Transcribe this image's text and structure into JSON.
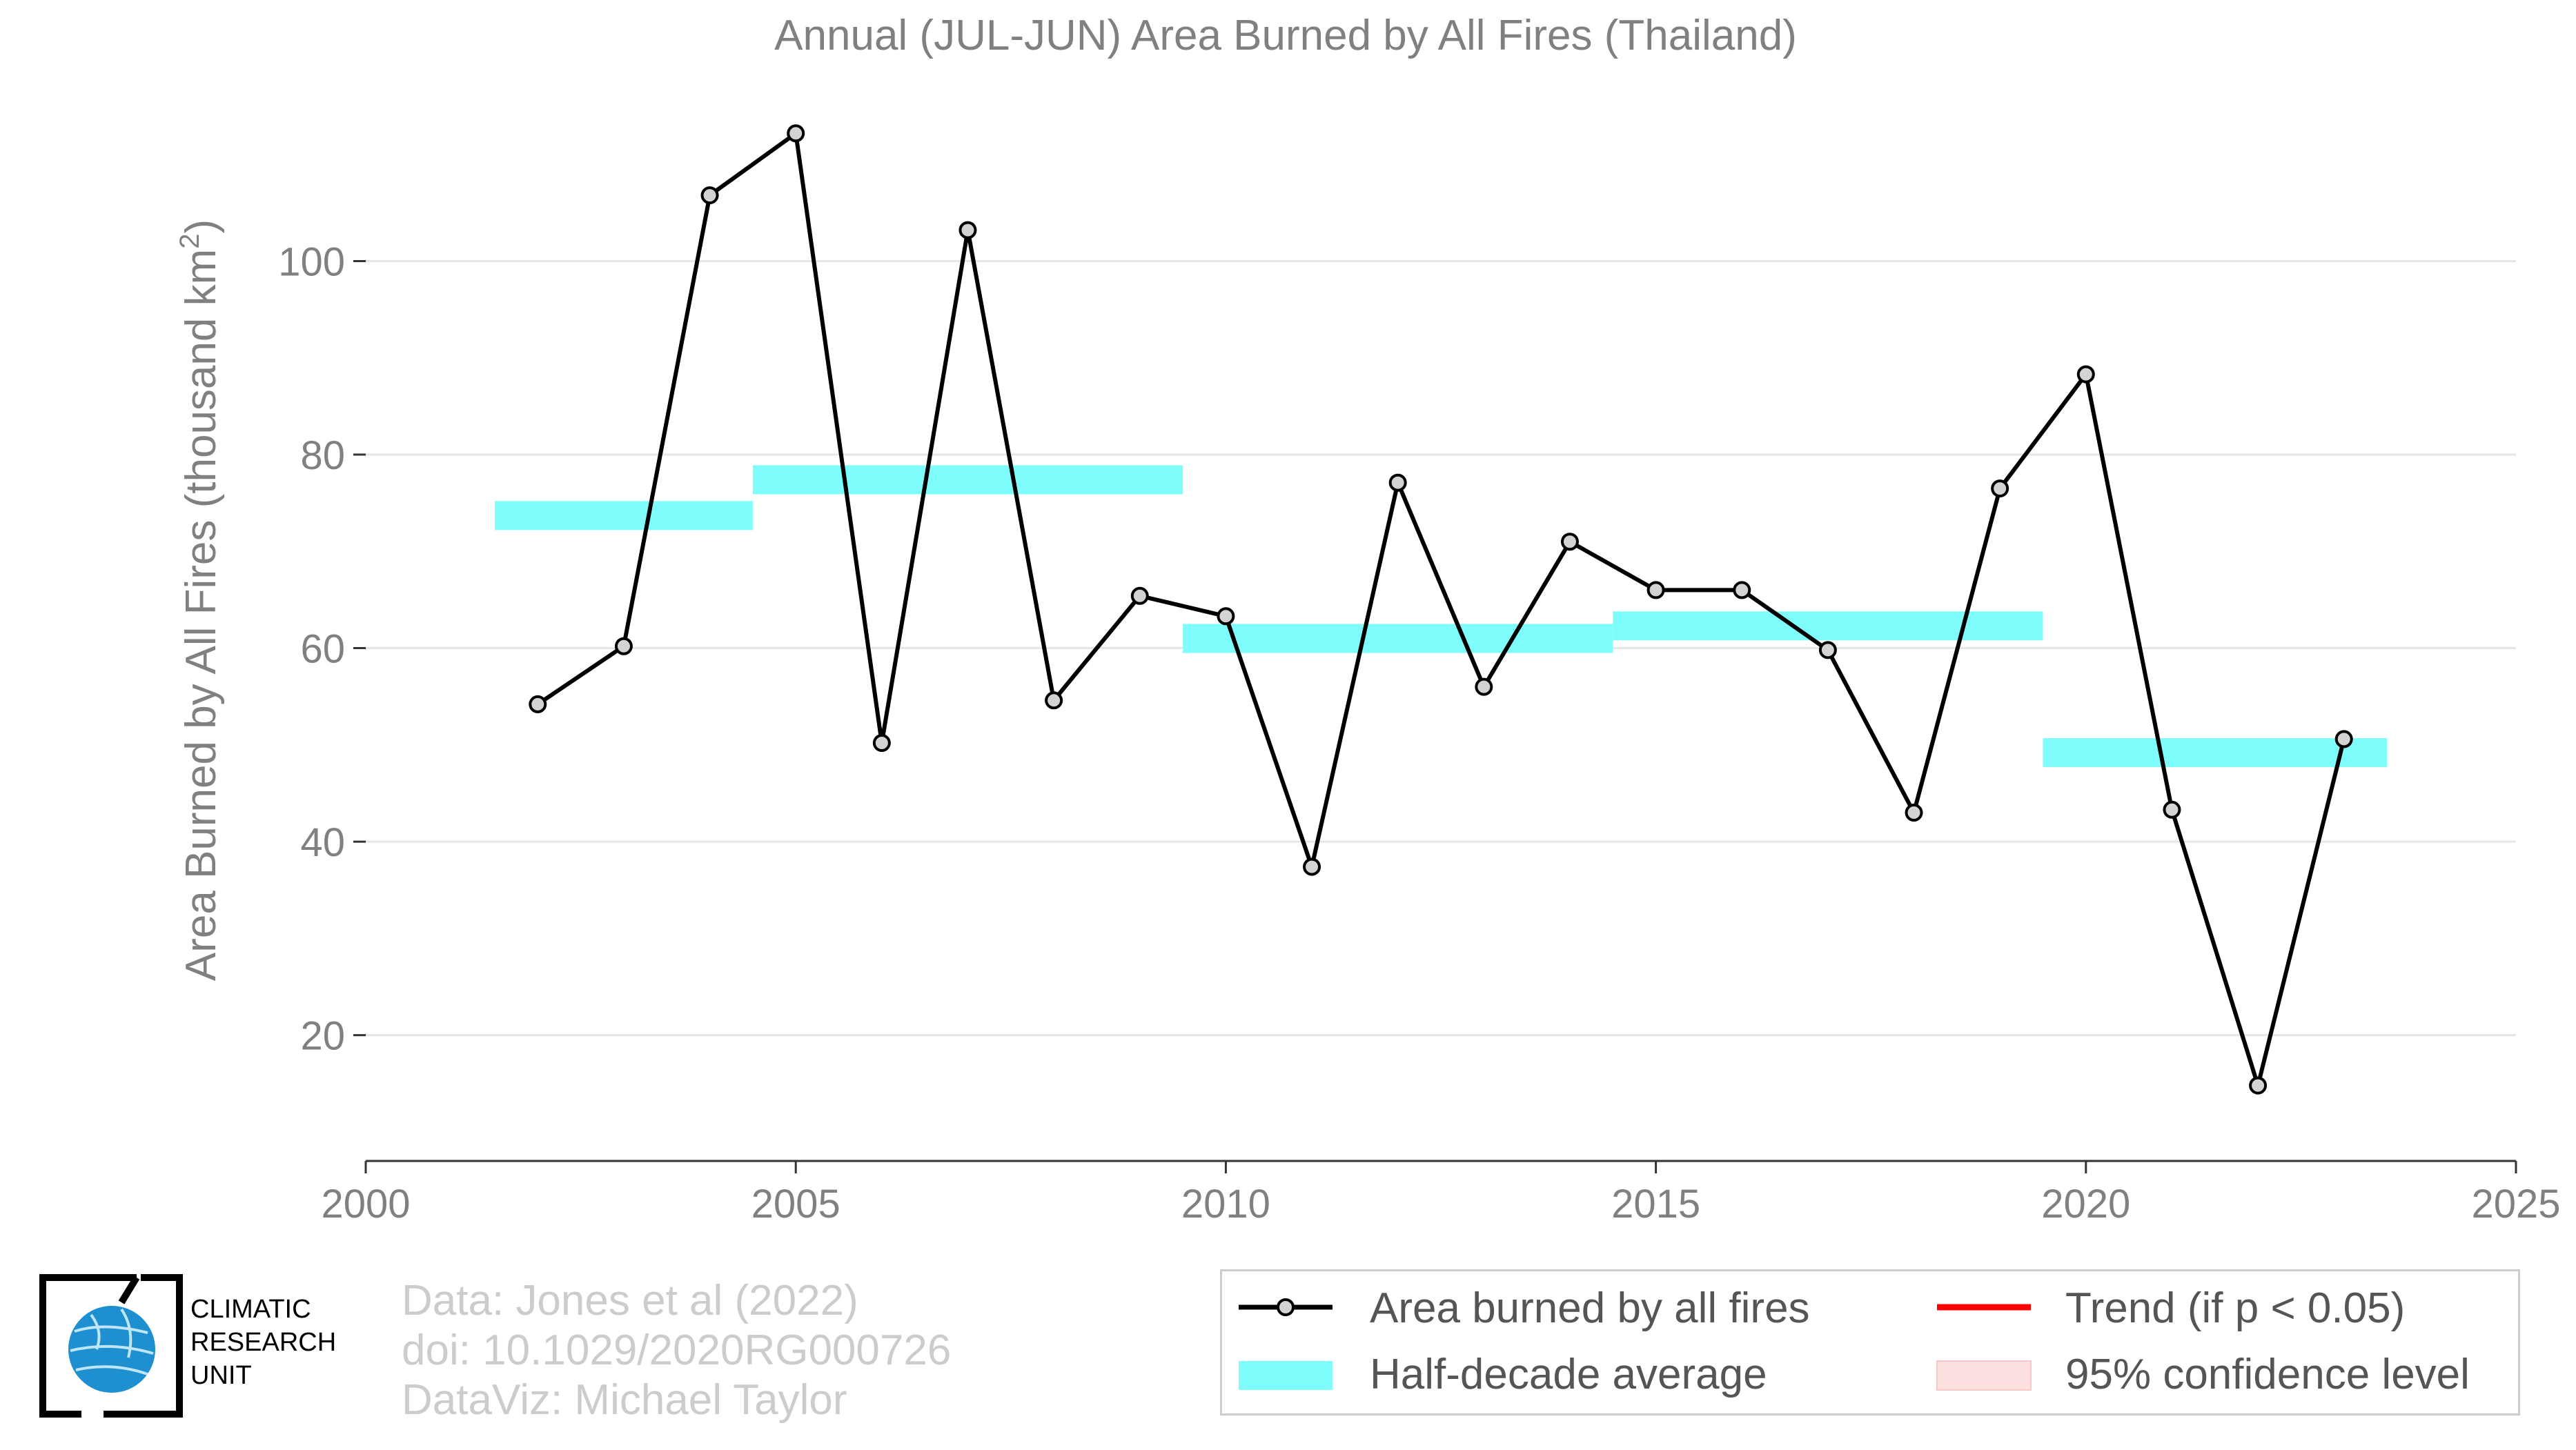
{
  "chart_data": {
    "type": "line",
    "title": "Annual (JUL-JUN) Area Burned by All Fires (Thailand)",
    "ylabel_main": "Area Burned by All Fires (thousand km",
    "ylabel_sup": "2",
    "ylabel_close": ")",
    "xlim": [
      2000,
      2025
    ],
    "ylim": [
      7,
      117
    ],
    "x_ticks": [
      2000,
      2005,
      2010,
      2015,
      2020,
      2025
    ],
    "y_ticks": [
      20,
      40,
      60,
      80,
      100
    ],
    "grid": "horizontal",
    "legend_placement": "bottom-right",
    "series": [
      {
        "name": "Area burned by all fires",
        "color": "#000000",
        "marker_fill": "#d3d3d3",
        "x": [
          2002,
          2003,
          2004,
          2005,
          2006,
          2007,
          2008,
          2009,
          2010,
          2011,
          2012,
          2013,
          2014,
          2015,
          2016,
          2017,
          2018,
          2019,
          2020,
          2021,
          2022,
          2023
        ],
        "values": [
          54.2,
          60.2,
          106.8,
          113.2,
          50.2,
          103.2,
          54.6,
          65.4,
          63.3,
          37.4,
          77.1,
          56.0,
          71.0,
          66.0,
          66.0,
          59.8,
          43.0,
          76.5,
          88.3,
          43.3,
          14.8,
          50.6
        ]
      },
      {
        "name": "Half-decade average",
        "color": "#7ffdfd",
        "segments": [
          {
            "x0": 2001.5,
            "x1": 2004.5,
            "value": 73.7
          },
          {
            "x0": 2004.5,
            "x1": 2009.5,
            "value": 77.4
          },
          {
            "x0": 2009.5,
            "x1": 2014.5,
            "value": 61.0
          },
          {
            "x0": 2014.5,
            "x1": 2019.5,
            "value": 62.3
          },
          {
            "x0": 2019.5,
            "x1": 2023.5,
            "value": 49.2
          }
        ]
      }
    ],
    "legend": [
      {
        "label": "Area burned by all fires",
        "kind": "line-marker",
        "color": "#000000"
      },
      {
        "label": "Trend (if p < 0.05)",
        "kind": "line",
        "color": "#ff0000"
      },
      {
        "label": "Half-decade average",
        "kind": "band",
        "color": "#7ffdfd"
      },
      {
        "label": "95% confidence level",
        "kind": "band",
        "color": "#fde0e0"
      }
    ]
  },
  "credits": {
    "line1": "Data: Jones et al (2022)",
    "line2": "doi: 10.1029/2020RG000726",
    "line3": "DataViz: Michael Taylor"
  },
  "logo": {
    "line1": "CLIMATIC",
    "line2": "RESEARCH",
    "line3": "UNIT",
    "globe_color": "#1e90d0"
  }
}
